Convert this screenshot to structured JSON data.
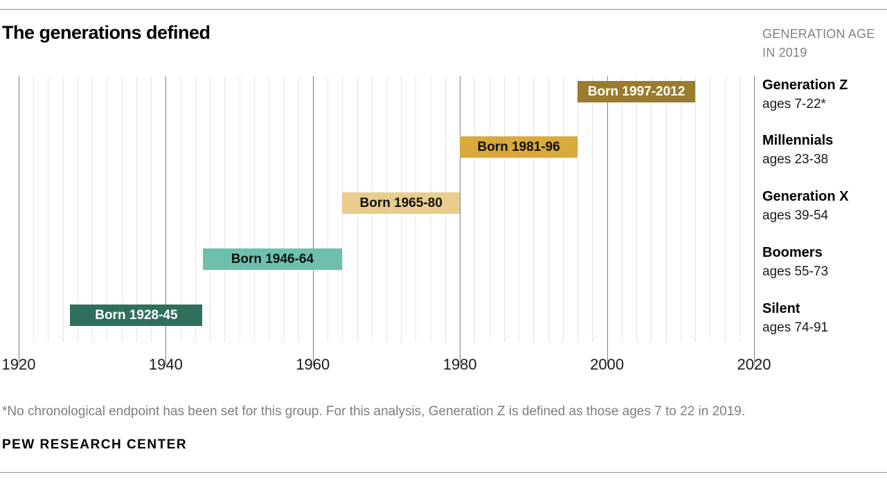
{
  "header": {
    "title": "The generations defined",
    "note_line1": "GENERATION AGE",
    "note_line2": "IN 2019"
  },
  "chart_data": {
    "type": "bar",
    "title": "The generations defined",
    "orientation": "horizontal",
    "x_axis": {
      "min": 1920,
      "max": 2020,
      "ticks": [
        1920,
        1940,
        1960,
        1980,
        2000,
        2020
      ],
      "gridline_step_years": 2,
      "grid": "on"
    },
    "legend_position": "right",
    "series": [
      {
        "name": "Generation Z",
        "ages": "ages 7-22*",
        "bar_label": "Born 1997-2012",
        "start": 1997,
        "end": 2012,
        "color": "#9A7C2E",
        "label_color": "#FFFFFF"
      },
      {
        "name": "Millennials",
        "ages": "ages 23-38",
        "bar_label": "Born 1981-96",
        "start": 1981,
        "end": 1996,
        "color": "#D9A93C",
        "label_color": "#111111"
      },
      {
        "name": "Generation X",
        "ages": "ages 39-54",
        "bar_label": "Born 1965-80",
        "start": 1965,
        "end": 1980,
        "color": "#E8CD8D",
        "label_color": "#111111"
      },
      {
        "name": "Boomers",
        "ages": "ages 55-73",
        "bar_label": "Born 1946-64",
        "start": 1946,
        "end": 1964,
        "color": "#6EC0AE",
        "label_color": "#111111"
      },
      {
        "name": "Silent",
        "ages": "ages 74-91",
        "bar_label": "Born 1928-45",
        "start": 1928,
        "end": 1945,
        "color": "#2F6F5E",
        "label_color": "#FFFFFF"
      }
    ]
  },
  "footer": {
    "footnote": "*No chronological endpoint has been set for this group. For this analysis, Generation Z is defined as those ages 7 to 22 in 2019.",
    "source": "PEW RESEARCH CENTER"
  }
}
